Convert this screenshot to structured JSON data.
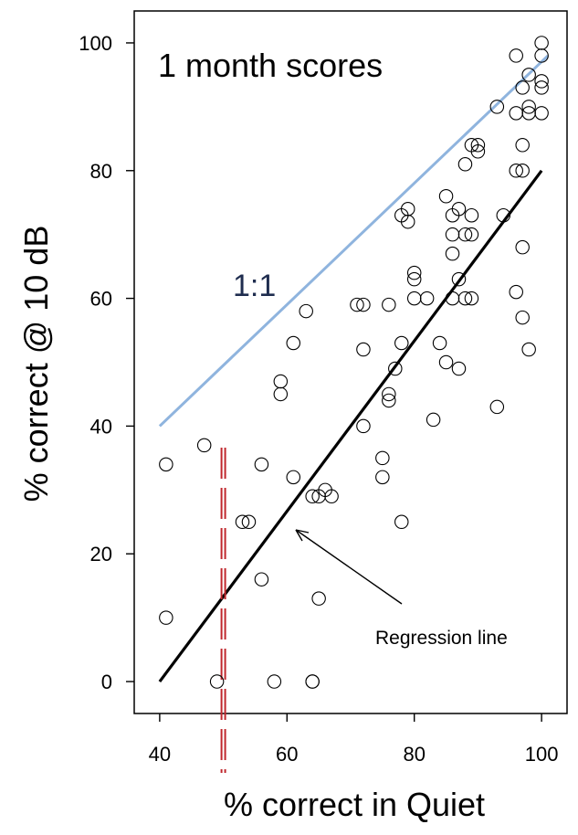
{
  "chart_data": {
    "type": "scatter",
    "title": "1 month scores",
    "xlabel": "% correct in Quiet",
    "ylabel": "% correct  @ 10 dB",
    "xlim": [
      36,
      104
    ],
    "ylim": [
      -5,
      105
    ],
    "xticks": [
      40,
      60,
      80,
      100
    ],
    "yticks": [
      0,
      20,
      40,
      60,
      80,
      100
    ],
    "grid": false,
    "series": [
      {
        "marker": "open-circle",
        "color": "#000000",
        "points": [
          [
            41,
            34
          ],
          [
            41,
            10
          ],
          [
            47,
            37
          ],
          [
            49,
            0
          ],
          [
            53,
            25
          ],
          [
            54,
            25
          ],
          [
            56,
            34
          ],
          [
            56,
            16
          ],
          [
            58,
            0
          ],
          [
            59,
            47
          ],
          [
            59,
            45
          ],
          [
            61,
            53
          ],
          [
            61,
            32
          ],
          [
            63,
            58
          ],
          [
            64,
            29
          ],
          [
            64,
            0
          ],
          [
            64,
            0
          ],
          [
            65,
            29
          ],
          [
            65,
            13
          ],
          [
            66,
            30
          ],
          [
            67,
            29
          ],
          [
            71,
            59
          ],
          [
            72,
            59
          ],
          [
            72,
            52
          ],
          [
            72,
            40
          ],
          [
            75,
            35
          ],
          [
            75,
            32
          ],
          [
            76,
            59
          ],
          [
            76,
            45
          ],
          [
            76,
            44
          ],
          [
            77,
            49
          ],
          [
            78,
            73
          ],
          [
            78,
            53
          ],
          [
            78,
            25
          ],
          [
            79,
            74
          ],
          [
            79,
            72
          ],
          [
            80,
            64
          ],
          [
            80,
            63
          ],
          [
            80,
            60
          ],
          [
            82,
            60
          ],
          [
            83,
            41
          ],
          [
            84,
            53
          ],
          [
            85,
            76
          ],
          [
            85,
            50
          ],
          [
            86,
            73
          ],
          [
            86,
            70
          ],
          [
            86,
            67
          ],
          [
            86,
            60
          ],
          [
            87,
            74
          ],
          [
            87,
            63
          ],
          [
            87,
            49
          ],
          [
            88,
            81
          ],
          [
            88,
            70
          ],
          [
            88,
            60
          ],
          [
            89,
            84
          ],
          [
            89,
            73
          ],
          [
            89,
            70
          ],
          [
            89,
            60
          ],
          [
            90,
            84
          ],
          [
            90,
            83
          ],
          [
            93,
            90
          ],
          [
            93,
            43
          ],
          [
            94,
            73
          ],
          [
            96,
            98
          ],
          [
            96,
            89
          ],
          [
            96,
            80
          ],
          [
            96,
            61
          ],
          [
            97,
            93
          ],
          [
            97,
            84
          ],
          [
            97,
            80
          ],
          [
            97,
            68
          ],
          [
            97,
            57
          ],
          [
            98,
            95
          ],
          [
            98,
            90
          ],
          [
            98,
            89
          ],
          [
            98,
            52
          ],
          [
            100,
            100
          ],
          [
            100,
            98
          ],
          [
            100,
            94
          ],
          [
            100,
            93
          ],
          [
            100,
            89
          ]
        ]
      }
    ],
    "lines": [
      {
        "name": "1:1",
        "color": "#8fb4de",
        "from": [
          40,
          40
        ],
        "to": [
          101,
          98
        ]
      },
      {
        "name": "Regression line",
        "color": "#000000",
        "from": [
          40,
          0
        ],
        "to": [
          100,
          80
        ]
      }
    ],
    "threshold": {
      "x": 50,
      "color": "#c0282d",
      "style": "dashed-double"
    },
    "annotations": {
      "ref_label": "1:1",
      "reg_label": "Regression line"
    }
  }
}
